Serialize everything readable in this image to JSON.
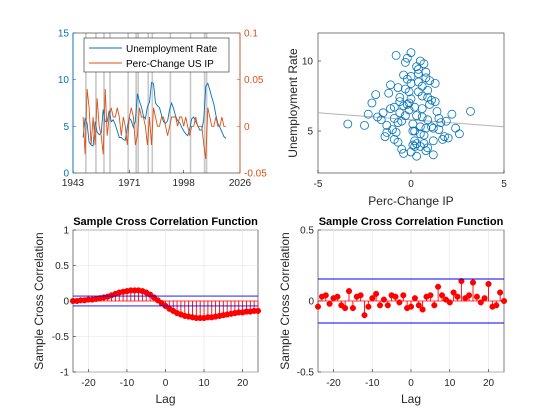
{
  "chart_data": [
    {
      "type": "line",
      "dual_axis": true,
      "title": "",
      "xlabel": "",
      "ylabel": "",
      "x_ticks": [
        "1943",
        "1971",
        "1998",
        "2026"
      ],
      "x_tick_values": [
        1943,
        1971,
        1998,
        2026
      ],
      "xlim": [
        1943,
        2026
      ],
      "y_left": {
        "ticks": [
          "0",
          "5",
          "10",
          "15"
        ],
        "tick_values": [
          0,
          5,
          10,
          15
        ],
        "ylim": [
          0,
          15
        ],
        "color": "#0072BD"
      },
      "y_right": {
        "ticks": [
          "-0.05",
          "0",
          "0.05",
          "0.1"
        ],
        "tick_values": [
          -0.05,
          0,
          0.05,
          0.1
        ],
        "ylim": [
          -0.05,
          0.1
        ],
        "color": "#D95319"
      },
      "legend": {
        "placement": "top-left",
        "entries": [
          "Unemployment Rate",
          "Perc-Change US IP"
        ]
      },
      "recession_shading": true,
      "series": [
        {
          "name": "Unemployment Rate",
          "axis": "left",
          "color": "#0072BD",
          "x": [
            1948,
            1949,
            1950,
            1951,
            1952,
            1953,
            1954,
            1955,
            1956,
            1957,
            1958,
            1959,
            1960,
            1961,
            1962,
            1963,
            1964,
            1965,
            1966,
            1967,
            1968,
            1969,
            1970,
            1971,
            1972,
            1973,
            1974,
            1975,
            1976,
            1977,
            1978,
            1979,
            1980,
            1981,
            1982,
            1983,
            1984,
            1985,
            1986,
            1987,
            1988,
            1989,
            1990,
            1991,
            1992,
            1993,
            1994,
            1995,
            1996,
            1997,
            1998,
            1999,
            2000,
            2001,
            2002,
            2003,
            2004,
            2005,
            2006,
            2007,
            2008,
            2009,
            2010,
            2011,
            2012,
            2013,
            2014,
            2015,
            2016,
            2017,
            2018,
            2019
          ],
          "values": [
            3.8,
            5.9,
            5.3,
            3.3,
            3.0,
            2.9,
            5.5,
            4.4,
            4.1,
            4.3,
            6.8,
            5.5,
            5.5,
            6.7,
            5.5,
            5.7,
            5.2,
            4.5,
            3.8,
            3.8,
            3.6,
            3.5,
            4.9,
            5.9,
            5.6,
            4.9,
            5.6,
            8.5,
            7.7,
            7.1,
            6.1,
            5.8,
            7.1,
            7.6,
            9.7,
            9.6,
            7.5,
            7.2,
            7.0,
            6.2,
            5.5,
            5.3,
            5.6,
            6.8,
            7.5,
            6.9,
            6.1,
            5.6,
            5.4,
            4.9,
            4.5,
            4.2,
            4.0,
            4.7,
            5.8,
            6.0,
            5.5,
            5.1,
            4.6,
            4.6,
            5.8,
            9.3,
            9.6,
            8.9,
            8.1,
            7.4,
            6.2,
            5.3,
            4.9,
            4.4,
            3.9,
            3.7
          ]
        },
        {
          "name": "Perc-Change US IP",
          "axis": "right",
          "color": "#D95319",
          "x": [
            1948,
            1949,
            1950,
            1951,
            1952,
            1953,
            1954,
            1955,
            1956,
            1957,
            1958,
            1959,
            1960,
            1961,
            1962,
            1963,
            1964,
            1965,
            1966,
            1967,
            1968,
            1969,
            1970,
            1971,
            1972,
            1973,
            1974,
            1975,
            1976,
            1977,
            1978,
            1979,
            1980,
            1981,
            1982,
            1983,
            1984,
            1985,
            1986,
            1987,
            1988,
            1989,
            1990,
            1991,
            1992,
            1993,
            1994,
            1995,
            1996,
            1997,
            1998,
            1999,
            2000,
            2001,
            2002,
            2003,
            2004,
            2005,
            2006,
            2007,
            2008,
            2009,
            2010,
            2011,
            2012,
            2013,
            2014,
            2015,
            2016,
            2017,
            2018,
            2019
          ],
          "values": [
            0.01,
            -0.03,
            0.04,
            0.02,
            -0.02,
            0.01,
            -0.02,
            0.03,
            0.0,
            -0.01,
            -0.03,
            0.04,
            -0.01,
            0.01,
            0.02,
            0.01,
            0.01,
            0.02,
            0.01,
            -0.01,
            0.01,
            0.0,
            -0.02,
            0.01,
            0.02,
            0.01,
            -0.02,
            -0.01,
            0.02,
            0.01,
            0.01,
            0.0,
            -0.02,
            0.01,
            -0.02,
            0.02,
            0.01,
            0.0,
            0.0,
            0.01,
            0.01,
            0.0,
            -0.01,
            0.0,
            0.01,
            0.01,
            0.01,
            0.0,
            0.01,
            0.01,
            0.0,
            0.01,
            0.0,
            -0.01,
            0.0,
            0.0,
            0.01,
            0.0,
            0.0,
            0.0,
            -0.02,
            -0.035,
            0.02,
            0.01,
            0.0,
            0.0,
            0.01,
            0.0,
            0.0,
            0.01,
            0.0,
            0.0
          ]
        }
      ]
    },
    {
      "type": "scatter",
      "title": "",
      "xlabel": "Perc-Change IP",
      "ylabel": "Unemployment Rate",
      "xlim": [
        -5,
        5
      ],
      "ylim": [
        2,
        12
      ],
      "x_ticks": [
        "-5",
        "0",
        "5"
      ],
      "x_tick_values": [
        -5,
        0,
        5
      ],
      "y_ticks": [
        "5",
        "10"
      ],
      "y_tick_values": [
        5,
        10
      ],
      "marker_color": "#0072BD",
      "fit_line": {
        "x": [
          -5,
          5
        ],
        "y": [
          6.3,
          5.3
        ],
        "color": "#b3b3b3"
      },
      "points": {
        "x": [
          0.1,
          -0.3,
          0.5,
          0.8,
          -0.6,
          1.2,
          -1.1,
          0.3,
          -0.2,
          0.9,
          1.5,
          -0.9,
          0.0,
          0.6,
          -0.4,
          1.0,
          0.2,
          -0.7,
          1.8,
          -1.5,
          0.4,
          0.7,
          -0.1,
          -0.5,
          1.3,
          -1.3,
          0.8,
          0.2,
          -0.8,
          1.1,
          -0.3,
          0.5,
          -1.8,
          2.0,
          0.0,
          0.9,
          -0.6,
          0.3,
          -0.2,
          1.4,
          -1.0,
          0.6,
          0.1,
          -0.4,
          1.6,
          -1.2,
          0.4,
          0.7,
          -0.9,
          2.2,
          -2.1,
          0.2,
          1.0,
          -0.1,
          0.5,
          -0.7,
          1.2,
          0.0,
          -0.5,
          0.8,
          -1.6,
          1.7,
          0.3,
          -0.3,
          0.9,
          -2.5,
          2.6,
          0.6,
          -0.8,
          0.1,
          1.3,
          -1.4,
          0.4,
          0.0,
          -0.6,
          1.9,
          -1.9,
          0.7,
          0.2,
          -0.2,
          1.1,
          -1.1,
          0.5,
          0.9,
          -0.4,
          -3.4,
          3.2,
          -0.9,
          1.5,
          0.3,
          -0.1,
          0.8,
          -1.3,
          0.6,
          1.2,
          0.0,
          -0.7,
          0.4,
          2.4,
          -2.3
        ],
        "y": [
          5.5,
          6.1,
          4.8,
          5.2,
          7.1,
          4.3,
          6.6,
          9.6,
          8.7,
          3.8,
          5.9,
          4.4,
          10.6,
          7.5,
          3.4,
          6.9,
          5.0,
          8.1,
          4.6,
          6.3,
          9.1,
          4.1,
          7.8,
          5.7,
          8.4,
          5.4,
          3.6,
          6.7,
          4.9,
          7.2,
          9.9,
          5.3,
          6.0,
          4.5,
          8.9,
          5.8,
          7.4,
          3.2,
          10.2,
          6.4,
          5.1,
          8.2,
          4.0,
          6.8,
          5.6,
          7.7,
          9.4,
          4.7,
          5.9,
          6.2,
          7.0,
          3.9,
          8.6,
          6.5,
          10.0,
          4.2,
          5.2,
          7.3,
          3.7,
          9.2,
          5.8,
          4.4,
          6.1,
          8.0,
          7.9,
          5.4,
          4.8,
          6.6,
          10.4,
          5.0,
          7.1,
          4.6,
          8.5,
          3.5,
          6.3,
          5.7,
          7.6,
          9.8,
          4.3,
          6.9,
          5.3,
          8.3,
          3.9,
          7.4,
          9.0,
          5.5,
          6.4,
          6.7,
          5.1,
          4.1,
          7.0,
          8.8,
          4.9,
          6.0,
          3.3,
          8.4,
          5.6,
          7.8,
          5.2,
          6.2
        ]
      }
    },
    {
      "type": "stem",
      "title": "Sample Cross Correlation Function",
      "xlabel": "Lag",
      "ylabel": "Sample Cross Correlation",
      "xlim": [
        -24,
        24
      ],
      "ylim": [
        -1,
        1
      ],
      "x_ticks": [
        "-20",
        "-10",
        "0",
        "10",
        "20"
      ],
      "x_tick_values": [
        -20,
        -10,
        0,
        10,
        20
      ],
      "y_ticks": [
        "-1",
        "-0.5",
        "0",
        "0.5",
        "1"
      ],
      "y_tick_values": [
        -1,
        -0.5,
        0,
        0.5,
        1
      ],
      "confidence_bounds": [
        0.07,
        -0.07
      ],
      "marker_color": "#FF0000",
      "bound_color": "#0000FF",
      "lags": [
        -24,
        -23,
        -22,
        -21,
        -20,
        -19,
        -18,
        -17,
        -16,
        -15,
        -14,
        -13,
        -12,
        -11,
        -10,
        -9,
        -8,
        -7,
        -6,
        -5,
        -4,
        -3,
        -2,
        -1,
        0,
        1,
        2,
        3,
        4,
        5,
        6,
        7,
        8,
        9,
        10,
        11,
        12,
        13,
        14,
        15,
        16,
        17,
        18,
        19,
        20,
        21,
        22,
        23,
        24
      ],
      "values": [
        0.0,
        0.0,
        0.01,
        0.01,
        0.02,
        0.02,
        0.03,
        0.04,
        0.05,
        0.06,
        0.08,
        0.1,
        0.12,
        0.13,
        0.14,
        0.15,
        0.15,
        0.15,
        0.14,
        0.12,
        0.09,
        0.05,
        0.01,
        -0.03,
        -0.07,
        -0.11,
        -0.14,
        -0.17,
        -0.19,
        -0.21,
        -0.22,
        -0.23,
        -0.24,
        -0.24,
        -0.24,
        -0.23,
        -0.23,
        -0.22,
        -0.21,
        -0.2,
        -0.19,
        -0.18,
        -0.17,
        -0.16,
        -0.16,
        -0.15,
        -0.15,
        -0.14,
        -0.14
      ]
    },
    {
      "type": "stem",
      "title": "Sample Cross Correlation Function",
      "xlabel": "Lag",
      "ylabel": "Sample Cross Correlation",
      "xlim": [
        -24,
        24
      ],
      "ylim": [
        -0.5,
        0.5
      ],
      "x_ticks": [
        "-20",
        "-10",
        "0",
        "10",
        "20"
      ],
      "x_tick_values": [
        -20,
        -10,
        0,
        10,
        20
      ],
      "y_ticks": [
        "-0.5",
        "0",
        "0.5"
      ],
      "y_tick_values": [
        -0.5,
        0,
        0.5
      ],
      "confidence_bounds": [
        0.155,
        -0.155
      ],
      "marker_color": "#FF0000",
      "bound_color": "#0000FF",
      "lags": [
        -24,
        -23,
        -22,
        -21,
        -20,
        -19,
        -18,
        -17,
        -16,
        -15,
        -14,
        -13,
        -12,
        -11,
        -10,
        -9,
        -8,
        -7,
        -6,
        -5,
        -4,
        -3,
        -2,
        -1,
        0,
        1,
        2,
        3,
        4,
        5,
        6,
        7,
        8,
        9,
        10,
        11,
        12,
        13,
        14,
        15,
        16,
        17,
        18,
        19,
        20,
        21,
        22,
        23,
        24
      ],
      "values": [
        -0.04,
        0.03,
        0.04,
        -0.02,
        0.02,
        0.03,
        -0.03,
        -0.05,
        0.07,
        -0.05,
        0.03,
        0.04,
        -0.1,
        -0.04,
        0.02,
        0.05,
        -0.03,
        0.01,
        -0.03,
        0.04,
        0.03,
        -0.01,
        0.04,
        -0.05,
        -0.04,
        0.02,
        -0.03,
        -0.06,
        0.03,
        0.04,
        -0.03,
        0.1,
        0.04,
        0.01,
        -0.01,
        0.06,
        0.03,
        0.14,
        0.02,
        0.04,
        0.13,
        0.03,
        -0.01,
        0.02,
        0.12,
        -0.04,
        -0.03,
        0.06,
        0.0
      ]
    }
  ]
}
